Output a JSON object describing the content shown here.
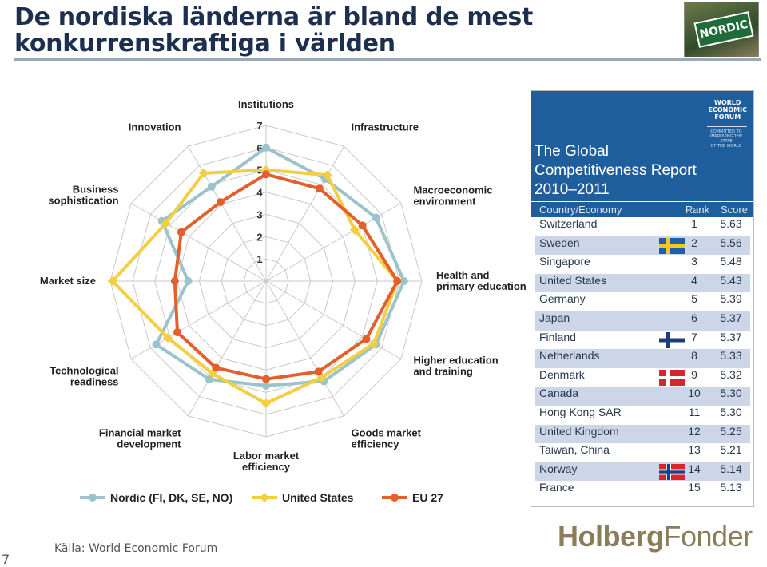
{
  "title": {
    "line1": "De nordiska länderna är bland de mest",
    "line2": "konkurrenskraftiga i världen"
  },
  "logo": {
    "text": "NORDIC"
  },
  "chart_data": {
    "type": "radar",
    "title": "",
    "scale": {
      "min": 1,
      "max": 7,
      "ticks": [
        "1",
        "2",
        "3",
        "4",
        "5",
        "6",
        "7"
      ]
    },
    "axes": [
      "Institutions",
      "Infrastructure",
      "Macroeconomic environment",
      "Health and primary education",
      "Higher education and training",
      "Goods market efficiency",
      "Labor market efficiency",
      "Financial market development",
      "Technological readiness",
      "Market size",
      "Business sophistication",
      "Innovation"
    ],
    "series": [
      {
        "name": "Nordic (FI, DK, SE, NO)",
        "color": "#9bc3cb",
        "values": [
          6.0,
          5.3,
          5.7,
          6.2,
          5.7,
          5.2,
          4.7,
          5.1,
          5.7,
          3.5,
          5.4,
          4.9
        ]
      },
      {
        "name": "United States",
        "color": "#f3ce43",
        "values": [
          5.0,
          5.5,
          4.6,
          5.9,
          5.6,
          5.0,
          5.5,
          4.8,
          5.1,
          6.9,
          5.2,
          5.6
        ]
      },
      {
        "name": "EU 27",
        "color": "#e35f2b",
        "values": [
          4.8,
          4.8,
          5.0,
          5.9,
          5.2,
          4.7,
          4.4,
          4.5,
          4.6,
          4.1,
          4.4,
          4.1
        ]
      }
    ]
  },
  "wef": {
    "org_lines": [
      "WORLD",
      "ECONOMIC",
      "FORUM"
    ],
    "mission_lines": [
      "COMMITTED TO",
      "IMPROVING THE STATE",
      "OF THE WORLD"
    ],
    "report_title_lines": [
      "The Global",
      "Competitiveness Report",
      "2010–2011"
    ],
    "headers": {
      "country": "Country/Economy",
      "rank": "Rank",
      "score": "Score"
    },
    "rows": [
      {
        "country": "Switzerland",
        "rank": "1",
        "score": "5.63",
        "flag": ""
      },
      {
        "country": "Sweden",
        "rank": "2",
        "score": "5.56",
        "flag": "sweden"
      },
      {
        "country": "Singapore",
        "rank": "3",
        "score": "5.48",
        "flag": ""
      },
      {
        "country": "United States",
        "rank": "4",
        "score": "5.43",
        "flag": ""
      },
      {
        "country": "Germany",
        "rank": "5",
        "score": "5.39",
        "flag": ""
      },
      {
        "country": "Japan",
        "rank": "6",
        "score": "5.37",
        "flag": ""
      },
      {
        "country": "Finland",
        "rank": "7",
        "score": "5.37",
        "flag": "finland"
      },
      {
        "country": "Netherlands",
        "rank": "8",
        "score": "5.33",
        "flag": ""
      },
      {
        "country": "Denmark",
        "rank": "9",
        "score": "5.32",
        "flag": "denmark"
      },
      {
        "country": "Canada",
        "rank": "10",
        "score": "5.30",
        "flag": ""
      },
      {
        "country": "Hong Kong SAR",
        "rank": "11",
        "score": "5.30",
        "flag": ""
      },
      {
        "country": "United Kingdom",
        "rank": "12",
        "score": "5.25",
        "flag": ""
      },
      {
        "country": "Taiwan, China",
        "rank": "13",
        "score": "5.21",
        "flag": ""
      },
      {
        "country": "Norway",
        "rank": "14",
        "score": "5.14",
        "flag": "norway"
      },
      {
        "country": "France",
        "rank": "15",
        "score": "5.13",
        "flag": ""
      }
    ]
  },
  "source": "Källa: World Economic Forum",
  "page_number": "7",
  "brand": {
    "part1": "Holberg",
    "part2": "Fonder"
  }
}
